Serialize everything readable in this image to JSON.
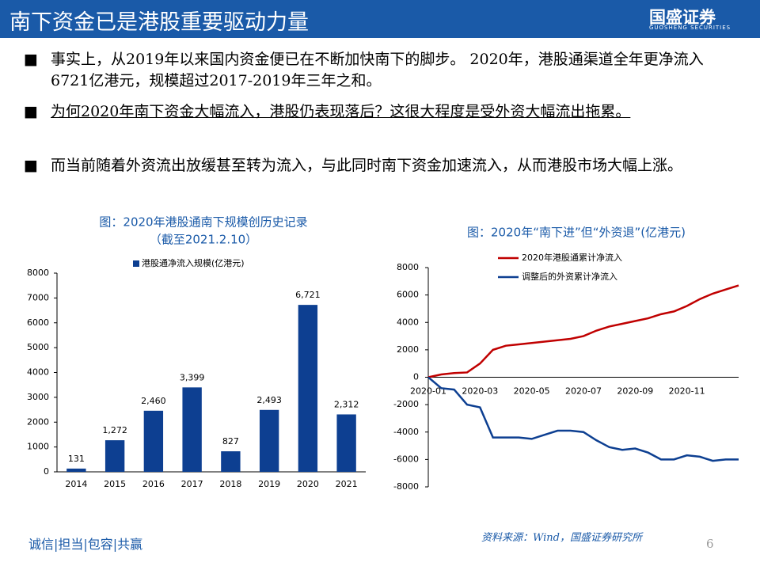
{
  "header": {
    "title": "南下资金已是港股重要驱动力量",
    "logo": "国盛证券",
    "logo_sub": "GUOSHENG SECURITIES"
  },
  "bullets": [
    "事实上，从2019年以来国内资金便已在不断加快南下的脚步。 2020年，港股通渠道全年更净流入6721亿港元，规模超过2017-2019年三年之和。",
    "为何2020年南下资金大幅流入，港股仍表现落后？这很大程度是受外资大幅流出拖累。",
    "而当前随着外资流出放缓甚至转为流入，与此同时南下资金加速流入，从而港股市场大幅上涨。"
  ],
  "chart_data": [
    {
      "type": "bar",
      "title": "图：2020年港股通南下规模创历史记录",
      "subtitle": "（截至2021.2.10）",
      "categories": [
        "2014",
        "2015",
        "2016",
        "2017",
        "2018",
        "2019",
        "2020",
        "2021"
      ],
      "series": [
        {
          "name": "港股通净流入规模(亿港元)",
          "color": "#0d3f91",
          "values": [
            131,
            1272,
            2460,
            3399,
            827,
            2493,
            6721,
            2312
          ],
          "value_labels": [
            "131",
            "1,272",
            "2,460",
            "3,399",
            "827",
            "2,493",
            "6,721",
            "2,312"
          ]
        }
      ],
      "ylim": [
        0,
        8000
      ],
      "yticks": [
        0,
        1000,
        2000,
        3000,
        4000,
        5000,
        6000,
        7000,
        8000
      ]
    },
    {
      "type": "line",
      "title": "图：2020年“南下进”但“外资退”(亿港元)",
      "categories": [
        "2020-01",
        null,
        null,
        null,
        "2020-03",
        null,
        null,
        null,
        "2020-05",
        null,
        null,
        null,
        "2020-07",
        null,
        null,
        null,
        "2020-09",
        null,
        null,
        null,
        "2020-11",
        null,
        null,
        null,
        null
      ],
      "series": [
        {
          "name": "2020年港股通累计净流入",
          "color": "#c00000",
          "values": [
            0,
            200,
            300,
            350,
            1000,
            2000,
            2300,
            2400,
            2500,
            2600,
            2700,
            2800,
            3000,
            3400,
            3700,
            3900,
            4100,
            4300,
            4600,
            4800,
            5200,
            5700,
            6100,
            6400,
            6700
          ]
        },
        {
          "name": "调整后的外资累计净流入",
          "color": "#0d3f91",
          "values": [
            0,
            -800,
            -900,
            -2000,
            -2200,
            -4400,
            -4400,
            -4400,
            -4500,
            -4200,
            -3900,
            -3900,
            -4000,
            -4600,
            -5100,
            -5300,
            -5200,
            -5500,
            -6000,
            -6000,
            -5700,
            -5800,
            -6100,
            -6000,
            -6000
          ]
        }
      ],
      "ylim": [
        -8000,
        8000
      ],
      "yticks": [
        -8000,
        -6000,
        -4000,
        -2000,
        0,
        2000,
        4000,
        6000,
        8000
      ]
    }
  ],
  "footer": {
    "motto": "诚信|担当|包容|共赢",
    "source": "资料来源：Wind，国盛证券研究所",
    "page": "6"
  }
}
